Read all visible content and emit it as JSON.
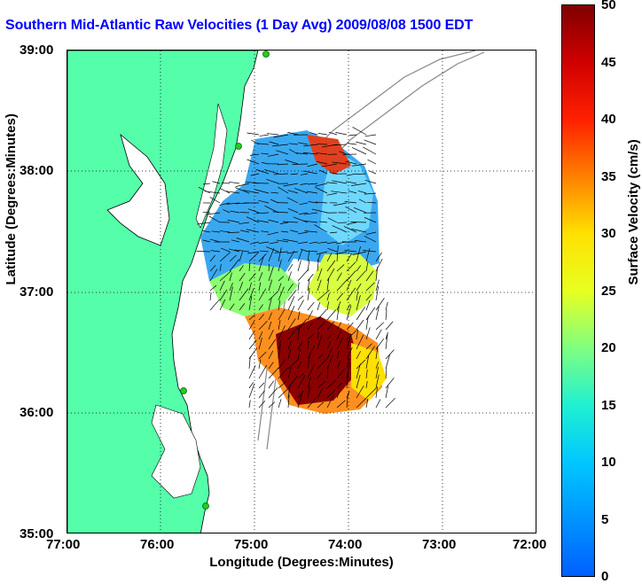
{
  "title": "Southern Mid-Atlantic Raw Velocities (1 Day Avg) 2009/08/08 1500 EDT",
  "axes": {
    "x_label": "Longitude (Degrees:Minutes)",
    "y_label": "Latitude (Degrees:Minutes)",
    "x_ticks": [
      "77:00",
      "76:00",
      "75:00",
      "74:00",
      "73:00",
      "72:00"
    ],
    "y_ticks": [
      "39:00",
      "38:00",
      "37:00",
      "36:00",
      "35:00"
    ]
  },
  "colorbar": {
    "label": "Surface Velocity (cm/s)",
    "ticks": [
      "50",
      "45",
      "40",
      "35",
      "30",
      "25",
      "20",
      "15",
      "10",
      "5",
      "0"
    ],
    "colors": [
      "#0060ff",
      "#00c8ff",
      "#20f0d0",
      "#80ff80",
      "#e8ff20",
      "#ffe000",
      "#ff8000",
      "#ff2000",
      "#d00000",
      "#800000"
    ]
  },
  "colors": {
    "land": "#55ffaa",
    "station": "#22cc22",
    "title": "#0000ff",
    "bathymetry": "#888888"
  }
}
